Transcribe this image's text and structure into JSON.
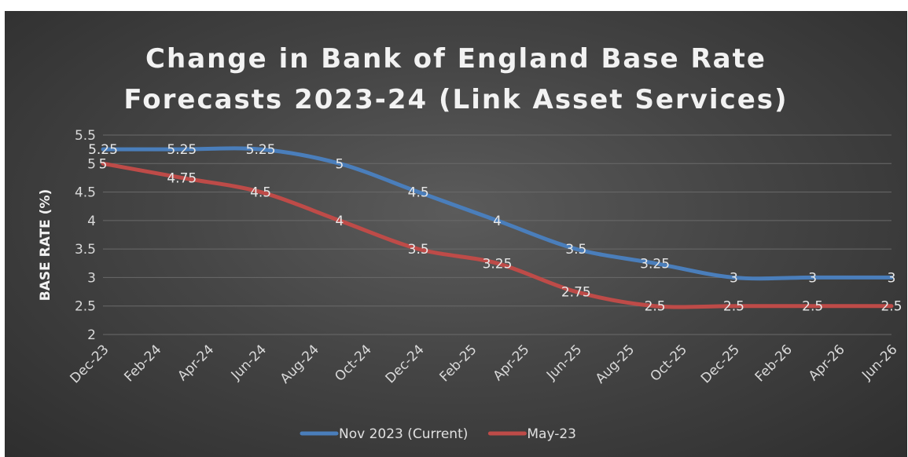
{
  "chart_data": {
    "type": "line",
    "title_lines": [
      "Change in Bank of England Base Rate",
      "Forecasts 2023-24 (Link Asset Services)"
    ],
    "ylabel": "BASE RATE (%)",
    "ylim": [
      2,
      5.5
    ],
    "yticks": [
      "2",
      "2.5",
      "3",
      "3.5",
      "4",
      "4.5",
      "5",
      "5.5"
    ],
    "grid": true,
    "legend_position": "bottom",
    "x_tick_labels": [
      "Dec-23",
      "Feb-24",
      "Apr-24",
      "Jun-24",
      "Aug-24",
      "Oct-24",
      "Dec-24",
      "Feb-25",
      "Apr-25",
      "Jun-25",
      "Aug-25",
      "Oct-25",
      "Dec-25",
      "Feb-26",
      "Apr-26",
      "Jun-26"
    ],
    "x_tick_months": [
      0,
      2,
      4,
      6,
      8,
      10,
      12,
      14,
      16,
      18,
      20,
      22,
      24,
      26,
      28,
      30
    ],
    "series": [
      {
        "name": "Nov 2023 (Current)",
        "color": "#4a7ebb",
        "x_months": [
          0,
          3,
          6,
          9,
          12,
          15,
          18,
          21,
          24,
          27,
          30
        ],
        "x": [
          "Dec-23",
          "Mar-24",
          "Jun-24",
          "Sep-24",
          "Dec-24",
          "Mar-25",
          "Jun-25",
          "Sep-25",
          "Dec-25",
          "Mar-26",
          "Jun-26"
        ],
        "values": [
          5.25,
          5.25,
          5.25,
          5,
          4.5,
          4,
          3.5,
          3.25,
          3,
          3,
          3
        ],
        "labels": [
          "5.25",
          "5.25",
          "5.25",
          "5",
          "4.5",
          "4",
          "3.5",
          "3.25",
          "3",
          "3",
          "3"
        ]
      },
      {
        "name": "May-23",
        "color": "#be4b48",
        "x_months": [
          0,
          3,
          6,
          9,
          12,
          15,
          18,
          21,
          24,
          27,
          30
        ],
        "x": [
          "Dec-23",
          "Mar-24",
          "Jun-24",
          "Sep-24",
          "Dec-24",
          "Mar-25",
          "Jun-25",
          "Sep-25",
          "Dec-25",
          "Mar-26",
          "Jun-26"
        ],
        "values": [
          5,
          4.75,
          4.5,
          4,
          3.5,
          3.25,
          2.75,
          2.5,
          2.5,
          2.5,
          2.5
        ],
        "labels": [
          "5",
          "4.75",
          "4.5",
          "4",
          "3.5",
          "3.25",
          "2.75",
          "2.5",
          "2.5",
          "2.5",
          "2.5"
        ]
      }
    ]
  }
}
